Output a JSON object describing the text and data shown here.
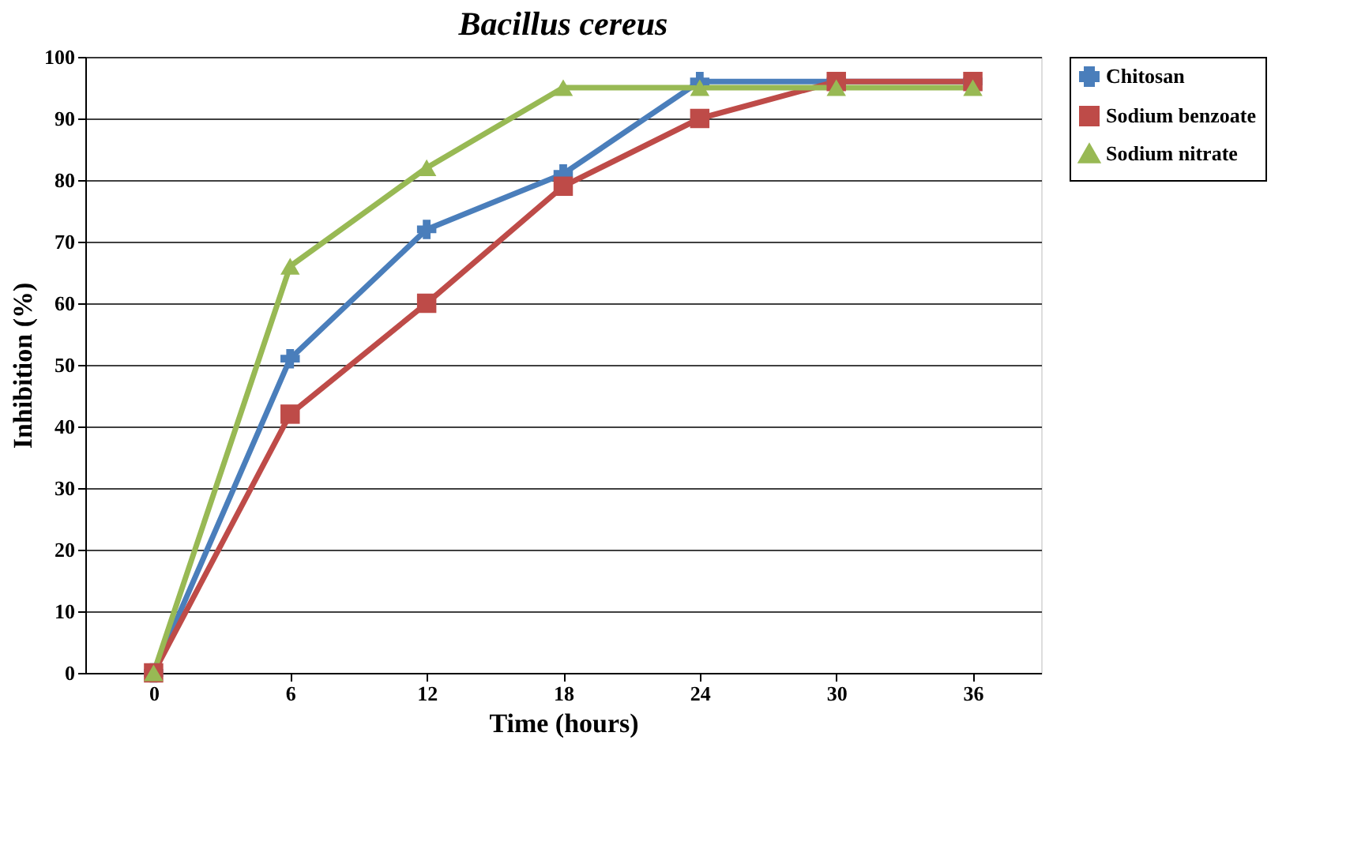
{
  "chart_data": {
    "type": "line",
    "title": "Bacillus cereus",
    "xlabel": "Time (hours)",
    "ylabel": "Inhibition (%)",
    "categories": [
      "0",
      "6",
      "12",
      "18",
      "24",
      "30",
      "36"
    ],
    "series": [
      {
        "name": "Chitosan",
        "color": "#4a7ebb",
        "marker": "cross",
        "values": [
          0,
          51,
          72,
          81,
          96,
          96,
          96
        ]
      },
      {
        "name": "Sodium benzoate",
        "color": "#be4b48",
        "marker": "square",
        "values": [
          0,
          42,
          60,
          79,
          90,
          96,
          96
        ]
      },
      {
        "name": "Sodium nitrate",
        "color": "#98b954",
        "marker": "triangle",
        "values": [
          0,
          66,
          82,
          95,
          95,
          95,
          95
        ]
      }
    ],
    "ylim": [
      0,
      100
    ],
    "yticks": [
      0,
      10,
      20,
      30,
      40,
      50,
      60,
      70,
      80,
      90,
      100
    ],
    "grid": "y",
    "legend": "right",
    "line_style": "solid"
  }
}
